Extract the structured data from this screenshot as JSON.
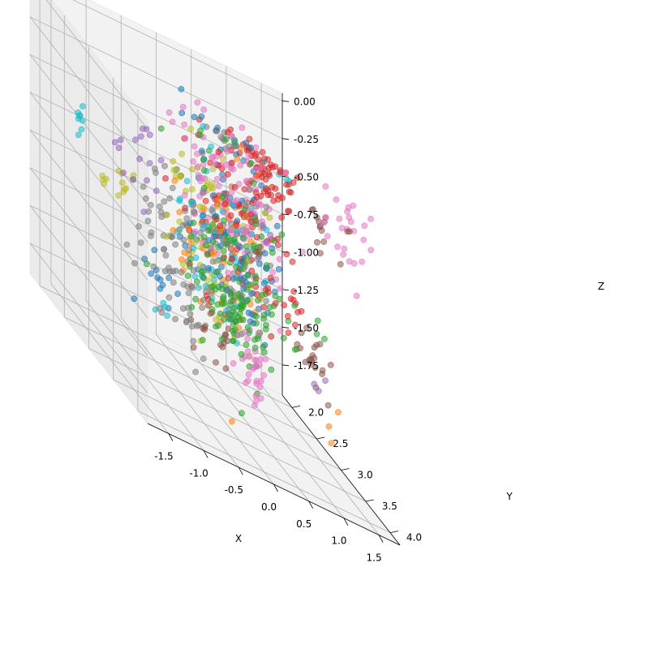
{
  "chart_data": {
    "type": "scatter3d",
    "title": "",
    "xlabel": "X",
    "ylabel": "Y",
    "zlabel": "Z",
    "xlim": [
      -1.8,
      1.8
    ],
    "ylim": [
      1.8,
      4.2
    ],
    "zlim": [
      -1.95,
      0.05
    ],
    "xticks": [
      "-1.5",
      "-1.0",
      "-0.5",
      "0.0",
      "0.5",
      "1.0",
      "1.5"
    ],
    "yticks": [
      "2.0",
      "2.5",
      "3.0",
      "3.5",
      "4.0"
    ],
    "zticks": [
      "0.00",
      "-0.25",
      "-0.50",
      "-0.75",
      "-1.00",
      "-1.25",
      "-1.50",
      "-1.75"
    ],
    "grid": true,
    "legend": "none",
    "series": [
      {
        "color": "#1f77b4",
        "clusters": [
          {
            "c": [
              -0.05,
              3.3,
              -0.6
            ],
            "s": [
              0.35,
              0.3,
              0.35
            ],
            "n": 70
          },
          {
            "c": [
              0.3,
              3.0,
              -1.0
            ],
            "s": [
              0.2,
              0.2,
              0.2
            ],
            "n": 25
          },
          {
            "c": [
              -0.6,
              2.8,
              -1.3
            ],
            "s": [
              0.15,
              0.15,
              0.15
            ],
            "n": 12
          }
        ]
      },
      {
        "color": "#ff7f0e",
        "clusters": [
          {
            "c": [
              0.0,
              3.2,
              -0.85
            ],
            "s": [
              0.3,
              0.25,
              0.3
            ],
            "n": 40
          },
          {
            "c": [
              1.5,
              3.2,
              -1.65
            ],
            "s": [
              0.05,
              0.05,
              0.05
            ],
            "n": 3
          },
          {
            "c": [
              -0.5,
              3.1,
              -0.9
            ],
            "s": [
              0.1,
              0.1,
              0.1
            ],
            "n": 6
          }
        ]
      },
      {
        "color": "#2ca02c",
        "clusters": [
          {
            "c": [
              0.35,
              3.0,
              -0.8
            ],
            "s": [
              0.25,
              0.25,
              0.3
            ],
            "n": 60
          },
          {
            "c": [
              0.45,
              2.7,
              -1.3
            ],
            "s": [
              0.3,
              0.3,
              0.2
            ],
            "n": 90
          },
          {
            "c": [
              1.1,
              3.6,
              -0.9
            ],
            "s": [
              0.05,
              0.05,
              0.05
            ],
            "n": 3
          }
        ]
      },
      {
        "color": "#d62728",
        "clusters": [
          {
            "c": [
              0.1,
              3.3,
              -0.6
            ],
            "s": [
              0.3,
              0.3,
              0.25
            ],
            "n": 90
          },
          {
            "c": [
              0.2,
              3.8,
              0.0
            ],
            "s": [
              0.25,
              0.2,
              0.15
            ],
            "n": 55
          },
          {
            "c": [
              1.0,
              3.0,
              -1.0
            ],
            "s": [
              0.1,
              0.1,
              0.1
            ],
            "n": 12
          },
          {
            "c": [
              0.25,
              2.5,
              -1.35
            ],
            "s": [
              0.05,
              0.05,
              0.05
            ],
            "n": 3
          }
        ]
      },
      {
        "color": "#9467bd",
        "clusters": [
          {
            "c": [
              -1.0,
              3.1,
              -0.55
            ],
            "s": [
              0.15,
              0.15,
              0.1
            ],
            "n": 16
          },
          {
            "c": [
              1.5,
              3.0,
              -1.45
            ],
            "s": [
              0.05,
              0.05,
              0.05
            ],
            "n": 3
          },
          {
            "c": [
              0.4,
              3.3,
              -0.6
            ],
            "s": [
              0.1,
              0.1,
              0.1
            ],
            "n": 6
          }
        ]
      },
      {
        "color": "#8c564b",
        "clusters": [
          {
            "c": [
              1.0,
              3.8,
              -0.25
            ],
            "s": [
              0.15,
              0.1,
              0.1
            ],
            "n": 15
          },
          {
            "c": [
              1.25,
              3.2,
              -1.3
            ],
            "s": [
              0.1,
              0.1,
              0.1
            ],
            "n": 20
          },
          {
            "c": [
              0.3,
              2.5,
              -1.6
            ],
            "s": [
              0.15,
              0.1,
              0.1
            ],
            "n": 18
          }
        ]
      },
      {
        "color": "#e377c2",
        "clusters": [
          {
            "c": [
              0.0,
              3.3,
              -0.45
            ],
            "s": [
              0.3,
              0.3,
              0.25
            ],
            "n": 110
          },
          {
            "c": [
              1.3,
              3.9,
              -0.15
            ],
            "s": [
              0.15,
              0.15,
              0.15
            ],
            "n": 25
          },
          {
            "c": [
              0.7,
              2.8,
              -1.6
            ],
            "s": [
              0.1,
              0.1,
              0.1
            ],
            "n": 30
          }
        ]
      },
      {
        "color": "#7f7f7f",
        "clusters": [
          {
            "c": [
              0.0,
              3.2,
              -0.7
            ],
            "s": [
              0.3,
              0.3,
              0.3
            ],
            "n": 70
          },
          {
            "c": [
              -0.7,
              2.9,
              -1.0
            ],
            "s": [
              0.2,
              0.15,
              0.2
            ],
            "n": 40
          },
          {
            "c": [
              -0.3,
              3.6,
              0.05
            ],
            "s": [
              0.1,
              0.1,
              0.05
            ],
            "n": 12
          },
          {
            "c": [
              0.1,
              2.4,
              -1.55
            ],
            "s": [
              0.15,
              0.1,
              0.15
            ],
            "n": 20
          }
        ]
      },
      {
        "color": "#bcbd22",
        "clusters": [
          {
            "c": [
              -0.25,
              3.2,
              -0.65
            ],
            "s": [
              0.3,
              0.25,
              0.3
            ],
            "n": 45
          },
          {
            "c": [
              -1.3,
              2.9,
              -0.75
            ],
            "s": [
              0.1,
              0.1,
              0.1
            ],
            "n": 12
          },
          {
            "c": [
              0.0,
              2.9,
              -1.2
            ],
            "s": [
              0.2,
              0.2,
              0.2
            ],
            "n": 20
          }
        ]
      },
      {
        "color": "#17becf",
        "clusters": [
          {
            "c": [
              -0.05,
              3.2,
              -0.75
            ],
            "s": [
              0.3,
              0.3,
              0.3
            ],
            "n": 45
          },
          {
            "c": [
              -1.8,
              2.8,
              -0.5
            ],
            "s": [
              0.03,
              0.05,
              0.08
            ],
            "n": 8
          },
          {
            "c": [
              0.4,
              4.0,
              0.2
            ],
            "s": [
              0.05,
              0.05,
              0.03
            ],
            "n": 3
          },
          {
            "c": [
              -0.35,
              2.4,
              -1.6
            ],
            "s": [
              0.05,
              0.05,
              0.05
            ],
            "n": 4
          }
        ]
      }
    ]
  }
}
